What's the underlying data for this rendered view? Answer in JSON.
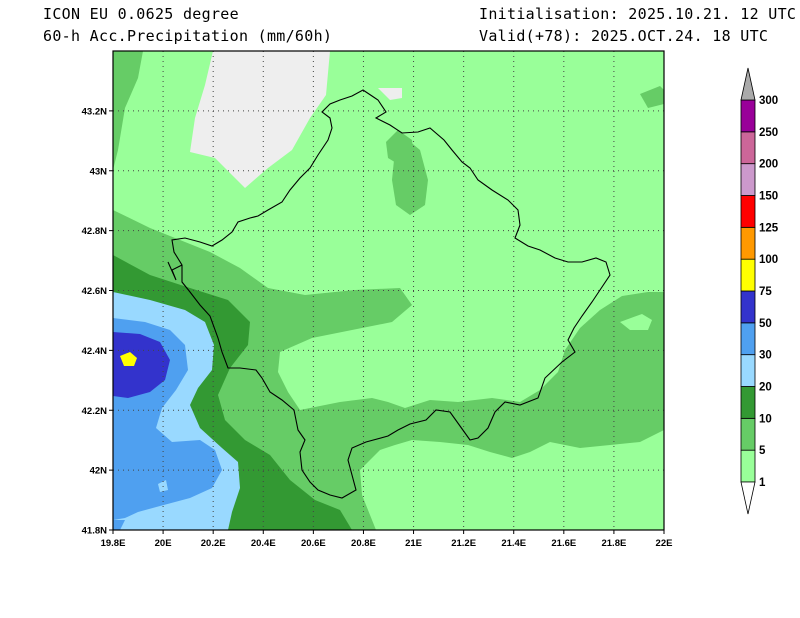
{
  "header": {
    "model": "ICON EU 0.0625 degree",
    "variable": "60-h Acc.Precipitation (mm/60h)",
    "init": "Initialisation: 2025.10.21. 12 UTC",
    "valid": "Valid(+78): 2025.OCT.24. 18 UTC"
  },
  "axes": {
    "lat_labels": [
      "43.2N",
      "43N",
      "42.8N",
      "42.6N",
      "42.4N",
      "42.2N",
      "42N",
      "41.8N"
    ],
    "lon_labels": [
      "19.8E",
      "20E",
      "20.2E",
      "20.4E",
      "20.6E",
      "20.8E",
      "21E",
      "21.2E",
      "21.4E",
      "21.6E",
      "21.8E",
      "22E"
    ],
    "lat_range": [
      41.8,
      43.4
    ],
    "lon_range": [
      19.8,
      22.0
    ],
    "grid": true
  },
  "colorbar": {
    "levels": [
      "1",
      "5",
      "10",
      "20",
      "30",
      "50",
      "75",
      "100",
      "125",
      "150",
      "200",
      "250",
      "300"
    ],
    "colors": [
      "#ffffff",
      "#99ff99",
      "#66cc66",
      "#339933",
      "#99d9ff",
      "#4fa0f0",
      "#3333cc",
      "#ffff00",
      "#ff9900",
      "#ff0000",
      "#cc99cc",
      "#cc6699",
      "#990099",
      "#aaaaaa"
    ]
  }
}
